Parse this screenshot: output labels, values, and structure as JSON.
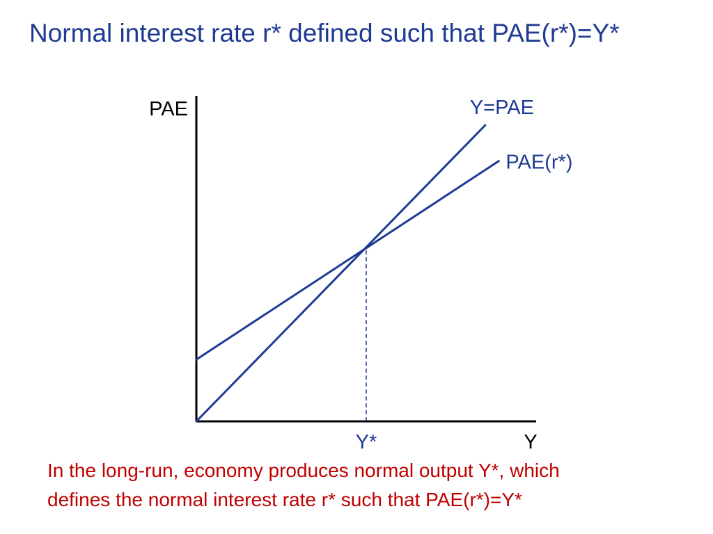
{
  "title": "Normal interest rate r* defined such that PAE(r*)=Y*",
  "caption": {
    "line1": "In the long-run, economy produces normal output Y*, which",
    "line2": "defines the normal interest rate r* such that PAE(r*)=Y*"
  },
  "colors": {
    "title": "#1f3a93",
    "lines": "#1f3a93",
    "axes": "#000000",
    "guide": "#1f3a93",
    "caption": "#c00000"
  },
  "chart_data": {
    "type": "line",
    "xlabel": "Y",
    "ylabel": "PAE",
    "xlim": [
      0,
      10
    ],
    "ylim": [
      0,
      10
    ],
    "grid": false,
    "x_tick_labels": [
      {
        "x": 5,
        "label": "Y*"
      }
    ],
    "series": [
      {
        "name": "Y=PAE",
        "x": [
          0,
          8.5
        ],
        "y": [
          0,
          9.1
        ]
      },
      {
        "name": "PAE(r*)",
        "x": [
          0,
          8.9
        ],
        "y": [
          1.9,
          8.0
        ]
      }
    ],
    "guides": [
      {
        "type": "vertical-dashed",
        "x": 5,
        "y_top": 5.35
      }
    ]
  }
}
